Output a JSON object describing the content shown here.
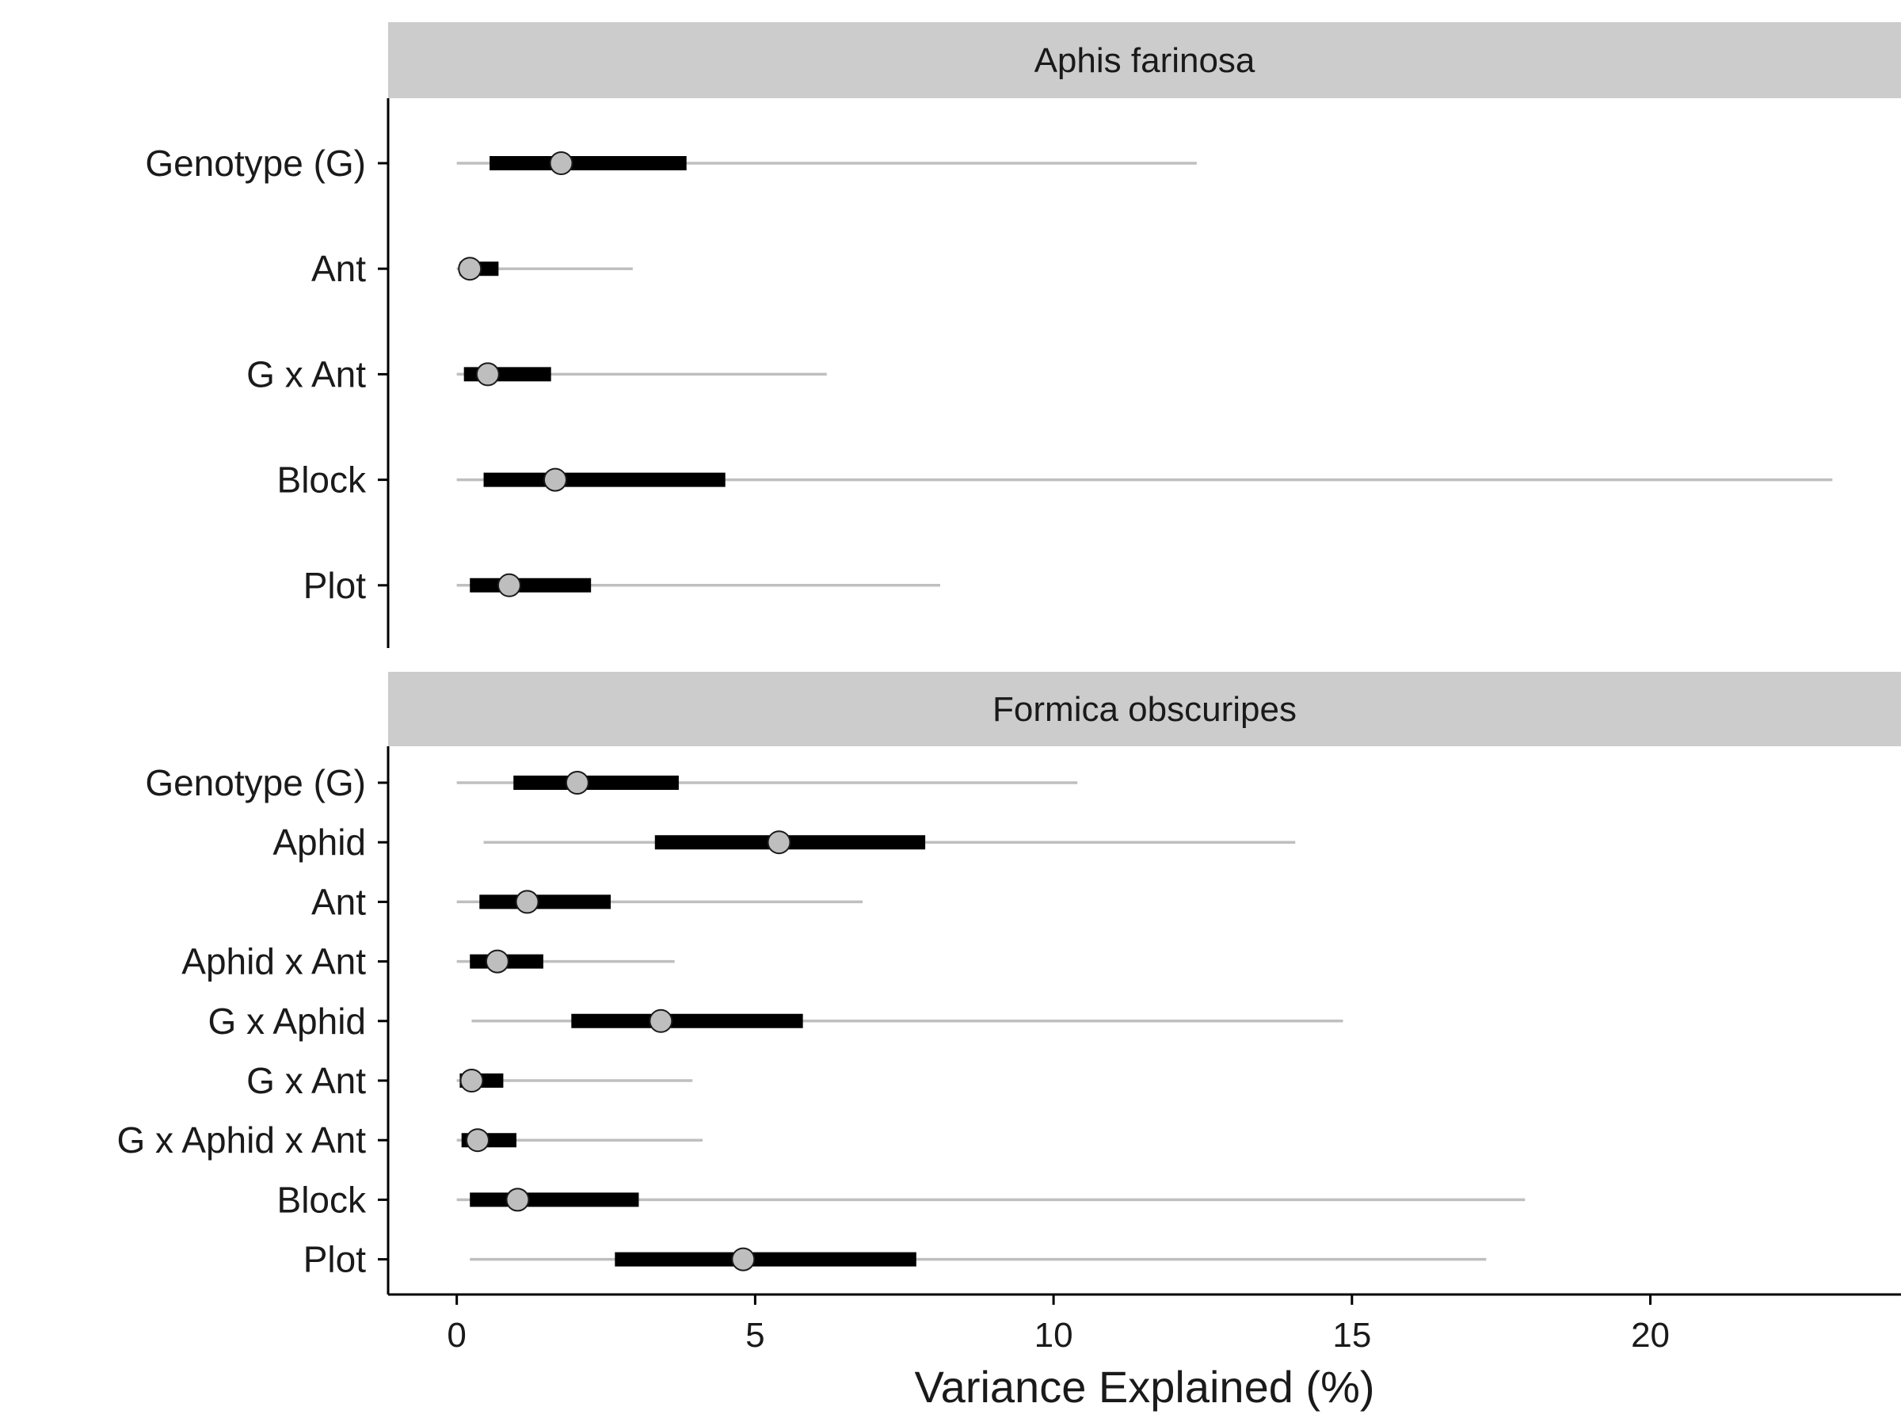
{
  "chart_data": {
    "type": "interval-dot",
    "xlabel": "Variance Explained (%)",
    "ylabel": "",
    "xlim": [
      -1.15,
      24.2
    ],
    "xticks": [
      0,
      5,
      10,
      15,
      20
    ],
    "xtick_labels": [
      "0",
      "5",
      "10",
      "15",
      "20"
    ],
    "colors": {
      "strip": "#cccccc",
      "outer_interval": "#bfbfbf",
      "inner_interval": "#000000",
      "point_fill": "#bebebe",
      "point_stroke": "#1a1a1a",
      "axis": "#000000"
    },
    "panels": [
      {
        "title": "Aphis farinosa",
        "rows": [
          {
            "label": "Genotype (G)",
            "lo": 0.0,
            "ilo": 0.55,
            "mid": 1.75,
            "ihi": 3.85,
            "hi": 12.4
          },
          {
            "label": "Ant",
            "lo": 0.0,
            "ilo": 0.05,
            "mid": 0.22,
            "ihi": 0.7,
            "hi": 2.95
          },
          {
            "label": "G x Ant",
            "lo": 0.0,
            "ilo": 0.12,
            "mid": 0.52,
            "ihi": 1.58,
            "hi": 6.2
          },
          {
            "label": "Block",
            "lo": 0.0,
            "ilo": 0.45,
            "mid": 1.65,
            "ihi": 4.5,
            "hi": 23.05
          },
          {
            "label": "Plot",
            "lo": 0.0,
            "ilo": 0.22,
            "mid": 0.88,
            "ihi": 2.25,
            "hi": 8.1
          }
        ]
      },
      {
        "title": "Formica obscuripes",
        "rows": [
          {
            "label": "Genotype (G)",
            "lo": 0.0,
            "ilo": 0.95,
            "mid": 2.02,
            "ihi": 3.72,
            "hi": 10.4
          },
          {
            "label": "Aphid",
            "lo": 0.45,
            "ilo": 3.32,
            "mid": 5.4,
            "ihi": 7.85,
            "hi": 14.05
          },
          {
            "label": "Ant",
            "lo": 0.0,
            "ilo": 0.38,
            "mid": 1.18,
            "ihi": 2.58,
            "hi": 6.8
          },
          {
            "label": "Aphid x Ant",
            "lo": 0.0,
            "ilo": 0.22,
            "mid": 0.68,
            "ihi": 1.45,
            "hi": 3.65
          },
          {
            "label": "G x Aphid",
            "lo": 0.25,
            "ilo": 1.92,
            "mid": 3.42,
            "ihi": 5.8,
            "hi": 14.85
          },
          {
            "label": "G x Ant",
            "lo": 0.0,
            "ilo": 0.05,
            "mid": 0.25,
            "ihi": 0.78,
            "hi": 3.95
          },
          {
            "label": "G x Aphid x Ant",
            "lo": 0.0,
            "ilo": 0.08,
            "mid": 0.35,
            "ihi": 1.0,
            "hi": 4.12
          },
          {
            "label": "Block",
            "lo": 0.0,
            "ilo": 0.22,
            "mid": 1.02,
            "ihi": 3.05,
            "hi": 17.9
          },
          {
            "label": "Plot",
            "lo": 0.22,
            "ilo": 2.65,
            "mid": 4.8,
            "ihi": 7.7,
            "hi": 17.25
          }
        ]
      }
    ]
  }
}
